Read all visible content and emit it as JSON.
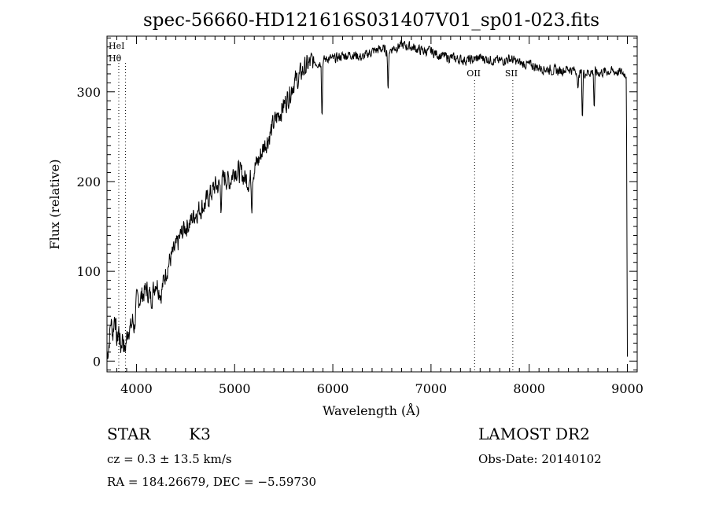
{
  "chart_data": {
    "type": "line",
    "title": "spec-56660-HD121616S031407V01_sp01-023.fits",
    "xlabel": "Wavelength (Å)",
    "ylabel": "Flux (relative)",
    "xlim": [
      3700,
      9100
    ],
    "ylim": [
      -12,
      362
    ],
    "x_ticks": [
      4000,
      5000,
      6000,
      7000,
      8000,
      9000
    ],
    "y_ticks": [
      0,
      100,
      200,
      300
    ],
    "grid": false,
    "line_color": "#000000",
    "series": [
      {
        "x": [
          3700,
          3720,
          3740,
          3760,
          3780,
          3800,
          3820,
          3840,
          3860,
          3880,
          3900,
          3920,
          3940,
          3960,
          3980,
          4000,
          4050,
          4100,
          4150,
          4200,
          4250,
          4300,
          4350,
          4400,
          4450,
          4500,
          4550,
          4600,
          4650,
          4700,
          4750,
          4800,
          4850,
          4900,
          4950,
          5000,
          5050,
          5100,
          5150,
          5200,
          5250,
          5300,
          5350,
          5400,
          5450,
          5500,
          5550,
          5600,
          5650,
          5700,
          5750,
          5800,
          5850,
          5900,
          5950,
          6000,
          6100,
          6200,
          6300,
          6400,
          6500,
          6560,
          6600,
          6700,
          6800,
          6900,
          7000,
          7100,
          7200,
          7300,
          7400,
          7500,
          7600,
          7700,
          7800,
          7900,
          8000,
          8100,
          8200,
          8300,
          8400,
          8500,
          8540,
          8600,
          8660,
          8700,
          8800,
          8900,
          8990,
          9000
        ],
        "y": [
          5,
          20,
          45,
          30,
          55,
          20,
          35,
          15,
          30,
          10,
          25,
          40,
          35,
          45,
          38,
          65,
          72,
          80,
          70,
          90,
          75,
          100,
          115,
          125,
          140,
          150,
          155,
          165,
          170,
          175,
          185,
          195,
          195,
          205,
          200,
          215,
          210,
          205,
          200,
          215,
          225,
          240,
          250,
          265,
          275,
          285,
          295,
          310,
          315,
          325,
          330,
          335,
          332,
          334,
          338,
          336,
          340,
          342,
          338,
          345,
          348,
          345,
          348,
          352,
          350,
          346,
          345,
          340,
          338,
          336,
          335,
          338,
          336,
          334,
          337,
          332,
          330,
          327,
          325,
          323,
          326,
          322,
          320,
          322,
          322,
          321,
          323,
          322,
          320,
          5
        ]
      }
    ],
    "absorption_features": [
      {
        "x": 5890,
        "depth": 70
      },
      {
        "x": 6563,
        "depth": 50
      },
      {
        "x": 8498,
        "depth": 25
      },
      {
        "x": 8542,
        "depth": 55
      },
      {
        "x": 8662,
        "depth": 45
      },
      {
        "x": 5175,
        "depth": 35
      },
      {
        "x": 4861,
        "depth": 25
      }
    ],
    "line_markers": [
      {
        "label": "HeI",
        "x": 3820
      },
      {
        "label": "Hθ",
        "x": 3889
      },
      {
        "label": "OII",
        "x": 7444
      },
      {
        "label": "SII",
        "x": 7833
      }
    ]
  },
  "info": {
    "class": "STAR",
    "subclass": "K3",
    "survey": "LAMOST DR2",
    "cz": "cz = 0.3 ± 13.5 km/s",
    "obs_date": "Obs-Date: 20140102",
    "radec": "RA = 184.26679, DEC =  −5.59730"
  }
}
